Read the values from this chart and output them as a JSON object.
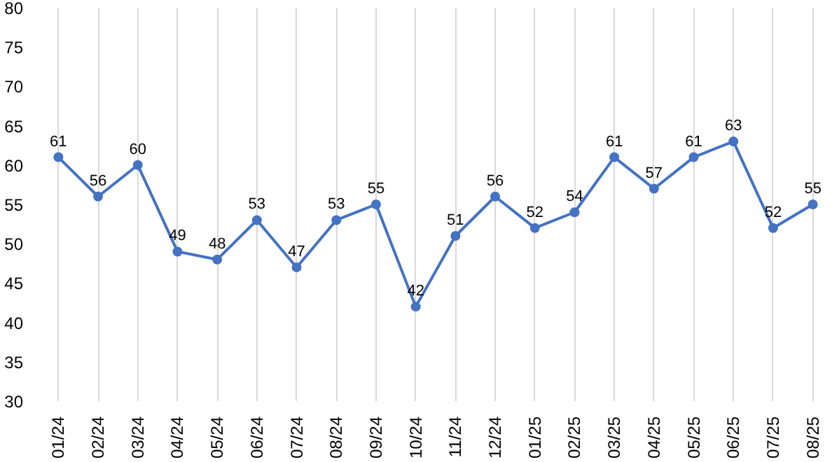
{
  "chart_data": {
    "type": "line",
    "categories": [
      "01/24",
      "02/24",
      "03/24",
      "04/24",
      "05/24",
      "06/24",
      "07/24",
      "08/24",
      "09/24",
      "10/24",
      "11/24",
      "12/24",
      "01/25",
      "02/25",
      "03/25",
      "04/25",
      "05/25",
      "06/25",
      "07/25",
      "08/25"
    ],
    "series": [
      {
        "color": "#4472c4",
        "values": [
          61,
          56,
          60,
          49,
          48,
          53,
          47,
          53,
          55,
          42,
          51,
          56,
          52,
          54,
          61,
          57,
          61,
          63,
          52,
          55
        ]
      }
    ],
    "ylim": [
      30,
      80
    ],
    "yticks": [
      30,
      35,
      40,
      45,
      50,
      55,
      60,
      65,
      70,
      75,
      80
    ],
    "grid": "x",
    "marker": "circle",
    "line_style": "solid",
    "data_labels": true
  }
}
